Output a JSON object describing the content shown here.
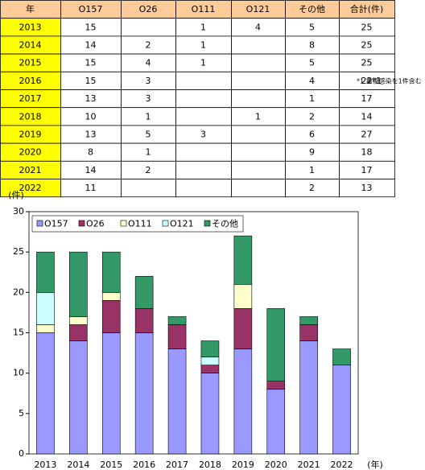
{
  "table": {
    "year_header": "年",
    "total_header": "合計(件)",
    "totals": [
      25,
      25,
      25,
      22,
      17,
      14,
      27,
      18,
      17,
      13
    ],
    "marker": "*1",
    "note": "*1 重複感染を1件含む"
  },
  "chart_data": {
    "type": "stacked_bar",
    "y_label": "(件)",
    "x_label": "(年)",
    "categories": [
      "2013",
      "2014",
      "2015",
      "2016",
      "2017",
      "2018",
      "2019",
      "2020",
      "2021",
      "2022"
    ],
    "series": [
      {
        "name": "O157",
        "color": "#9999ff",
        "values": [
          15,
          14,
          15,
          15,
          13,
          10,
          13,
          8,
          14,
          11
        ]
      },
      {
        "name": "O26",
        "color": "#993366",
        "values": [
          null,
          2,
          4,
          3,
          3,
          1,
          5,
          1,
          2,
          null
        ]
      },
      {
        "name": "O111",
        "color": "#ffffcc",
        "values": [
          1,
          1,
          1,
          null,
          null,
          null,
          3,
          null,
          null,
          null
        ]
      },
      {
        "name": "O121",
        "color": "#ccffff",
        "values": [
          4,
          null,
          null,
          null,
          null,
          1,
          null,
          null,
          null,
          null
        ]
      },
      {
        "name": "その他",
        "color": "#339966",
        "values": [
          5,
          8,
          5,
          4,
          1,
          2,
          6,
          9,
          1,
          2
        ]
      }
    ],
    "ylim": [
      0,
      30
    ],
    "yticks": [
      0,
      5,
      10,
      15,
      20,
      25,
      30
    ],
    "grid": false
  }
}
